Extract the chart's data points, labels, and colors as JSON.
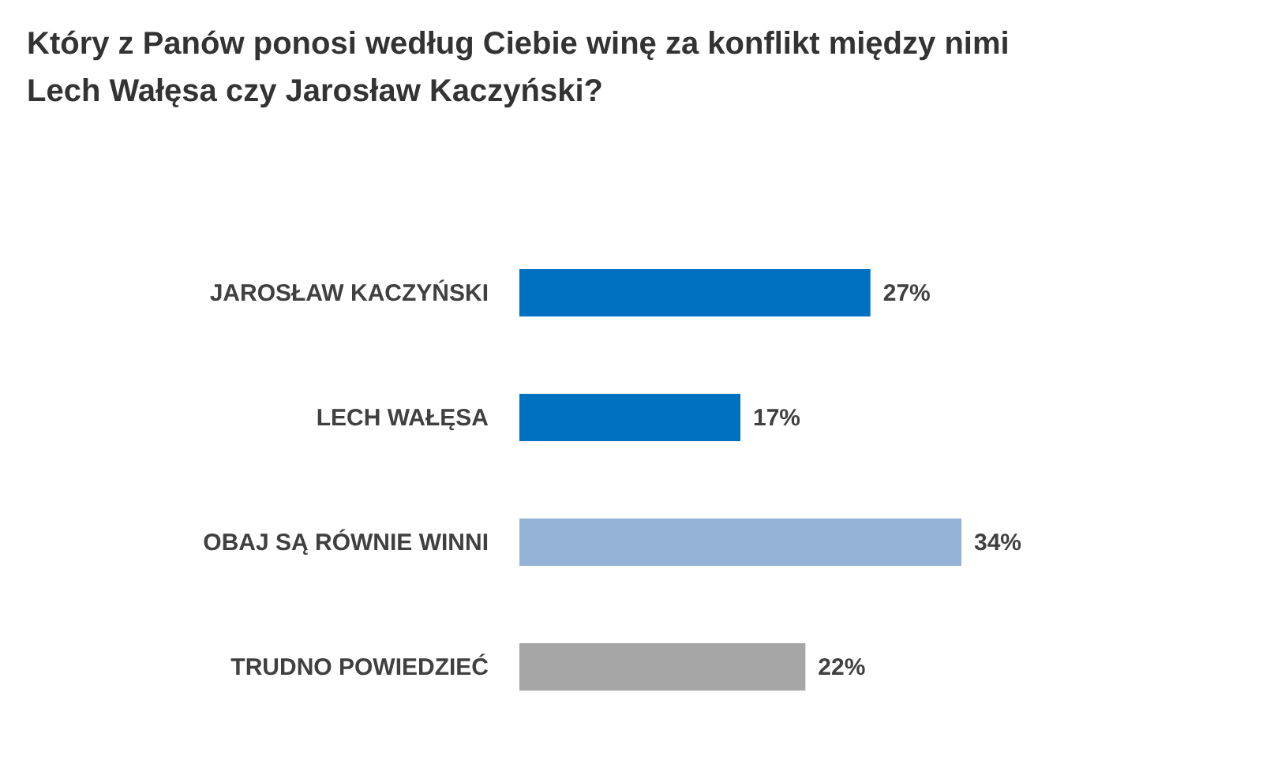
{
  "chart_data": {
    "type": "bar",
    "orientation": "horizontal",
    "title": "Który z Panów ponosi według Ciebie winę za konflikt między nimi\nLech Wałęsa czy Jarosław Kaczyński?",
    "categories": [
      "JAROSŁAW KACZYŃSKI",
      "LECH WAŁĘSA",
      "OBAJ SĄ RÓWNIE WINNI",
      "TRUDNO POWIEDZIEĆ"
    ],
    "values": [
      27,
      17,
      34,
      22
    ],
    "colors": [
      "#0070c0",
      "#0070c0",
      "#95b3d7",
      "#a6a6a6"
    ],
    "value_labels": [
      "27%",
      "17%",
      "34%",
      "22%"
    ]
  }
}
